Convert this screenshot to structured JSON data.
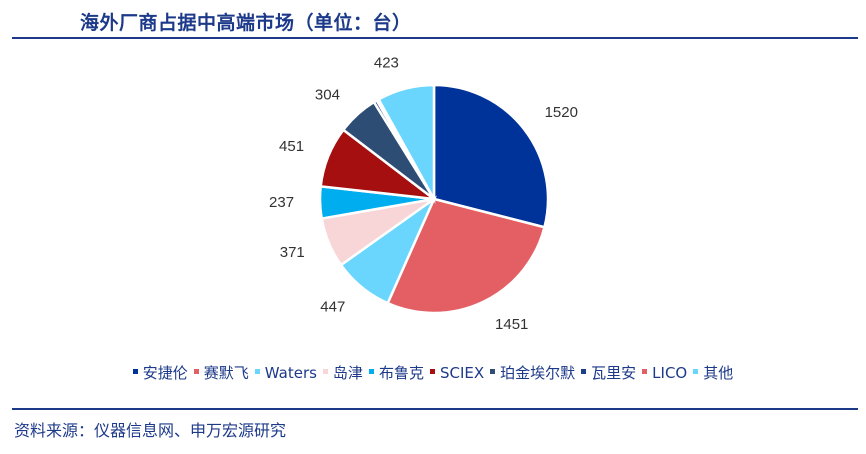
{
  "title": "海外厂商占据中高端市场（单位：台）",
  "source": "资料来源：仪器信息网、申万宏源研究",
  "chart_data": {
    "type": "pie",
    "title": "海外厂商占据中高端市场（单位：台）",
    "legend_position": "bottom",
    "slices": [
      {
        "name": "安捷伦",
        "value": 1520,
        "color": "#00339a",
        "label": "1520"
      },
      {
        "name": "赛默飞",
        "value": 1451,
        "color": "#e35f63",
        "label": "1451"
      },
      {
        "name": "Waters",
        "value": 447,
        "color": "#6bd6fd",
        "label": "447"
      },
      {
        "name": "岛津",
        "value": 371,
        "color": "#f8d5d7",
        "label": "371"
      },
      {
        "name": "布鲁克",
        "value": 237,
        "color": "#00aeef",
        "label": "237"
      },
      {
        "name": "SCIEX",
        "value": 451,
        "color": "#a50f0f",
        "label": "451"
      },
      {
        "name": "珀金埃尔默",
        "value": 304,
        "color": "#2d4d74",
        "label": "304"
      },
      {
        "name": "瓦里安",
        "value": 24,
        "color": "#1b3d8a",
        "label": ""
      },
      {
        "name": "LICO",
        "value": 16,
        "color": "#e35f63",
        "label": ""
      },
      {
        "name": "其他",
        "value": 423,
        "color": "#6bd6fd",
        "label": "423"
      }
    ]
  }
}
